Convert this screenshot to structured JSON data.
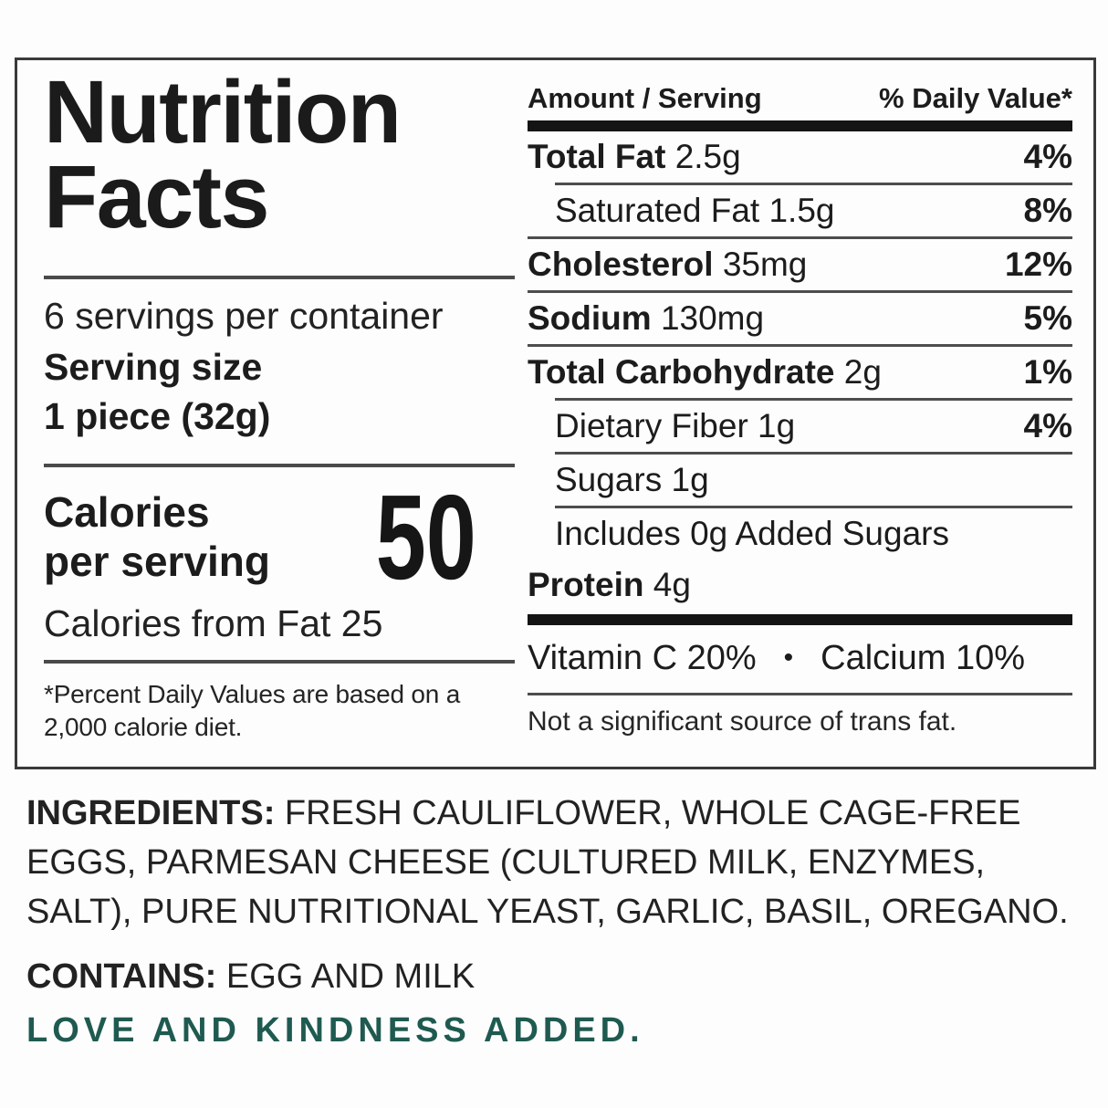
{
  "label": {
    "title_line1": "Nutrition",
    "title_line2": "Facts",
    "servings_per_container": "6 servings per container",
    "serving_size_label": "Serving size",
    "serving_size_value": "1 piece (32g)",
    "calories_label_line1": "Calories",
    "calories_label_line2": "per serving",
    "calories_value": "50",
    "calories_from_fat": "Calories from Fat 25",
    "footnote_line1": "*Percent Daily Values are based on a",
    "footnote_line2": "2,000 calorie diet.",
    "amount_header": "Amount / Serving",
    "dv_header": "% Daily Value*",
    "rows": [
      {
        "name": "Total Fat",
        "amount": "2.5g",
        "dv": "4%",
        "name_bold": true,
        "indent": false,
        "rule_above": "none"
      },
      {
        "name": "Saturated Fat",
        "amount": "1.5g",
        "dv": "8%",
        "name_bold": false,
        "indent": true,
        "rule_above": "indent"
      },
      {
        "name": "Cholesterol",
        "amount": "35mg",
        "dv": "12%",
        "name_bold": true,
        "indent": false,
        "rule_above": "full"
      },
      {
        "name": "Sodium",
        "amount": "130mg",
        "dv": "5%",
        "name_bold": true,
        "indent": false,
        "rule_above": "full"
      },
      {
        "name": "Total Carbohydrate",
        "amount": "2g",
        "dv": "1%",
        "name_bold": true,
        "indent": false,
        "rule_above": "full"
      },
      {
        "name": "Dietary Fiber",
        "amount": "1g",
        "dv": "4%",
        "name_bold": false,
        "indent": true,
        "rule_above": "indent"
      },
      {
        "name": "Sugars",
        "amount": "1g",
        "dv": "",
        "name_bold": false,
        "indent": true,
        "rule_above": "indent"
      },
      {
        "name": "Includes 0g Added Sugars",
        "amount": "",
        "dv": "",
        "name_bold": false,
        "indent": true,
        "rule_above": "indent"
      },
      {
        "name": "Protein",
        "amount": "4g",
        "dv": "",
        "name_bold": true,
        "indent": false,
        "rule_above": "none"
      }
    ],
    "vitamin_c": "Vitamin C 20%",
    "bullet": "•",
    "calcium": "Calcium 10%",
    "trans_fat_note": "Not a significant source of trans fat."
  },
  "ingredients": {
    "label": "INGREDIENTS:",
    "line1_rest": "FRESH CAULIFLOWER, WHOLE CAGE-FREE",
    "line2": "EGGS, PARMESAN CHEESE (CULTURED MILK, ENZYMES,",
    "line3": "SALT), PURE NUTRITIONAL YEAST, GARLIC, BASIL, OREGANO."
  },
  "contains": {
    "label": "CONTAINS:",
    "value": "EGG AND MILK"
  },
  "tagline": {
    "text": "LOVE AND KINDNESS ADDED."
  },
  "colors": {
    "tagline": "#1f5a50",
    "text": "#1c1c1c",
    "bar": "#141414",
    "rule": "#4a4a4a"
  }
}
